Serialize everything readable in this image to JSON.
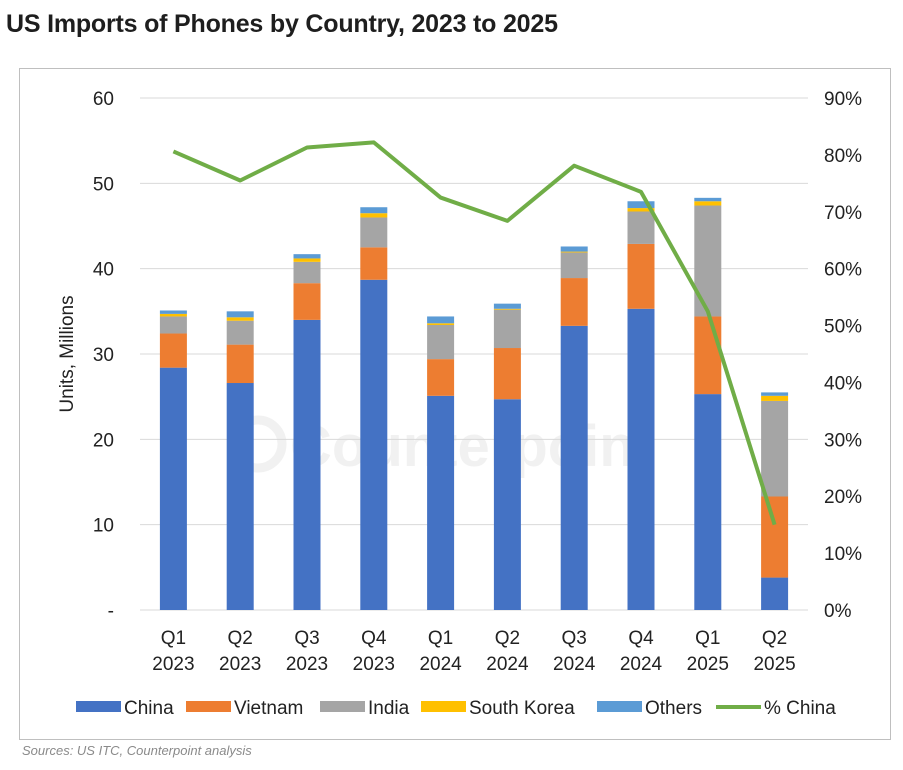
{
  "title": "US Imports of Phones by Country, 2023 to 2025",
  "source": "Sources: US ITC, Counterpoint analysis",
  "watermark": "Counterpoint",
  "chart_data": {
    "type": "bar",
    "stacked": true,
    "title": "US Imports of Phones by Country, 2023 to 2025",
    "ylabel": "Units, Millions",
    "ylim": [
      0,
      60
    ],
    "y_ticks": [
      "-",
      "10",
      "20",
      "30",
      "40",
      "50",
      "60"
    ],
    "y2lim": [
      0,
      90
    ],
    "y2_ticks": [
      "0%",
      "10%",
      "20%",
      "30%",
      "40%",
      "50%",
      "60%",
      "70%",
      "80%",
      "90%"
    ],
    "categories": [
      [
        "Q1",
        "2023"
      ],
      [
        "Q2",
        "2023"
      ],
      [
        "Q3",
        "2023"
      ],
      [
        "Q4",
        "2023"
      ],
      [
        "Q1",
        "2024"
      ],
      [
        "Q2",
        "2024"
      ],
      [
        "Q3",
        "2024"
      ],
      [
        "Q4",
        "2024"
      ],
      [
        "Q1",
        "2025"
      ],
      [
        "Q2",
        "2025"
      ]
    ],
    "series": [
      {
        "name": "China",
        "color": "#4472c4",
        "values": [
          28.4,
          26.6,
          34.0,
          38.7,
          25.1,
          24.7,
          33.3,
          35.3,
          25.3,
          3.8
        ]
      },
      {
        "name": "Vietnam",
        "color": "#ed7d31",
        "values": [
          4.0,
          4.5,
          4.3,
          3.8,
          4.3,
          6.0,
          5.6,
          7.6,
          9.1,
          9.5
        ]
      },
      {
        "name": "India",
        "color": "#a5a5a5",
        "values": [
          2.0,
          2.8,
          2.5,
          3.5,
          4.0,
          4.5,
          3.0,
          3.8,
          13.0,
          11.2
        ]
      },
      {
        "name": "South Korea",
        "color": "#ffc000",
        "values": [
          0.3,
          0.4,
          0.4,
          0.5,
          0.2,
          0.1,
          0.1,
          0.4,
          0.5,
          0.6
        ]
      },
      {
        "name": "Others",
        "color": "#5b9bd5",
        "values": [
          0.4,
          0.7,
          0.5,
          0.7,
          0.8,
          0.6,
          0.6,
          0.8,
          0.4,
          0.4
        ]
      }
    ],
    "line": {
      "name": "% China",
      "color": "#70ad47",
      "axis": "secondary",
      "values": [
        80.6,
        75.5,
        81.3,
        82.2,
        72.5,
        68.4,
        78.1,
        73.5,
        52.5,
        15.0
      ]
    },
    "legend_position": "bottom"
  }
}
